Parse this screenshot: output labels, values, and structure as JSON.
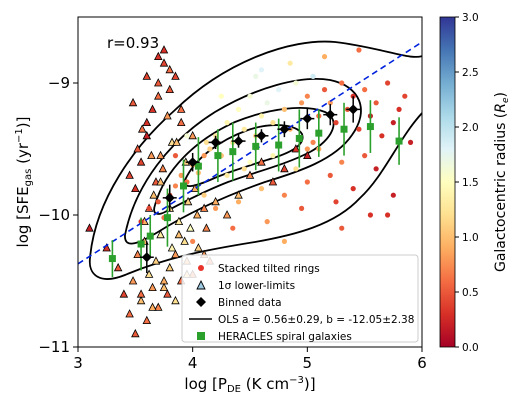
{
  "chart_data": {
    "type": "scatter",
    "annotation": "r=0.93",
    "xlabel_main": "log [P",
    "xlabel_sub": "DE",
    "xlabel_tail": " (K cm",
    "xlabel_sup": "−3",
    "xlabel_end": ")]",
    "ylabel_main": "log [SFE",
    "ylabel_sub": "gas",
    "ylabel_mid": " (yr",
    "ylabel_sup": "−1",
    "ylabel_end": ")]",
    "xlim": [
      3,
      6
    ],
    "ylim": [
      -11,
      -8.5
    ],
    "xticks": [
      3,
      4,
      5,
      6
    ],
    "yticks": [
      -11,
      -10,
      -9
    ],
    "ytick_labels": [
      "−11",
      "−10",
      "−9"
    ],
    "colorbar": {
      "label_main": "Galactocentric radius (",
      "label_sym": "R",
      "label_sub": "e",
      "label_end": ")",
      "range": [
        0,
        3
      ],
      "ticks": [
        0.0,
        0.5,
        1.0,
        1.5,
        2.0,
        2.5,
        3.0
      ],
      "tick_labels": [
        "0.0",
        "0.5",
        "1.0",
        "1.5",
        "2.0",
        "2.5",
        "3.0"
      ],
      "colormap": "RdYlBu"
    },
    "legend": {
      "placement": "lower-right",
      "entries": [
        {
          "label": "Stacked tilted rings",
          "marker": "dot",
          "color": "#e8322a"
        },
        {
          "label": "1σ lower-limits",
          "marker": "triangle",
          "color": "#9ec9e2"
        },
        {
          "label": "Binned data",
          "marker": "diamond",
          "color": "#000000"
        },
        {
          "label": "OLS a = 0.56±0.29, b = -12.05±2.38",
          "marker": "line",
          "color": "#000000"
        },
        {
          "label": "HERACLES spiral galaxies",
          "marker": "square",
          "color": "#2ca02c"
        }
      ]
    },
    "ols_fit": {
      "slope": 0.56,
      "intercept": -12.05,
      "x_range": [
        3,
        6
      ],
      "color": "#0022dd",
      "style": "dashed"
    },
    "binned_data": {
      "x": [
        3.6,
        3.8,
        4.0,
        4.2,
        4.4,
        4.6,
        4.8,
        5.0,
        5.2,
        5.4
      ],
      "y": [
        -10.32,
        -9.87,
        -9.6,
        -9.45,
        -9.44,
        -9.4,
        -9.35,
        -9.27,
        -9.24,
        -9.2
      ],
      "yerr": [
        0.12,
        0.1,
        0.07,
        0.05,
        0.05,
        0.05,
        0.06,
        0.08,
        0.08,
        0.1
      ]
    },
    "heracles": {
      "x": [
        3.3,
        3.55,
        3.63,
        3.78,
        3.92,
        4.05,
        4.22,
        4.35,
        4.55,
        4.75,
        4.93,
        5.1,
        5.32,
        5.55,
        5.8
      ],
      "y": [
        -10.33,
        -10.22,
        -10.16,
        -10.02,
        -9.78,
        -9.63,
        -9.55,
        -9.52,
        -9.48,
        -9.47,
        -9.42,
        -9.38,
        -9.35,
        -9.33,
        -9.44
      ],
      "yerr": [
        0.14,
        0.2,
        0.16,
        0.22,
        0.2,
        0.22,
        0.2,
        0.22,
        0.18,
        0.2,
        0.22,
        0.18,
        0.2,
        0.2,
        0.18
      ]
    },
    "stacked_rings": {
      "x": [
        3.55,
        3.62,
        3.7,
        3.75,
        3.8,
        3.85,
        3.9,
        3.95,
        4.0,
        4.05,
        4.1,
        4.12,
        4.15,
        4.2,
        4.25,
        4.3,
        4.35,
        4.4,
        4.45,
        4.5,
        4.55,
        4.6,
        4.65,
        4.7,
        4.75,
        4.8,
        4.85,
        4.9,
        4.95,
        5.0,
        5.05,
        5.1,
        5.15,
        5.2,
        5.25,
        5.3,
        5.35,
        5.4,
        5.45,
        5.5,
        5.55,
        5.6,
        5.65,
        5.7,
        5.75,
        5.8,
        5.85,
        5.9,
        4.1,
        4.3,
        4.5,
        4.7,
        4.9,
        5.1,
        5.3,
        5.5,
        4.2,
        4.4,
        4.6,
        4.8,
        5.0,
        5.2,
        5.4,
        5.6,
        4.35,
        4.65,
        4.95,
        5.25,
        5.55,
        5.75,
        3.95,
        4.25,
        4.55,
        4.85,
        5.15,
        5.45,
        4.0,
        4.8,
        5.3,
        5.7,
        4.6,
        5.0,
        3.85,
        4.45,
        5.05
      ],
      "y": [
        -10.05,
        -9.95,
        -9.9,
        -10.02,
        -9.85,
        -9.78,
        -9.7,
        -9.75,
        -9.62,
        -9.68,
        -9.55,
        -9.45,
        -9.5,
        -9.4,
        -9.55,
        -9.3,
        -9.45,
        -9.2,
        -9.35,
        -9.1,
        -9.4,
        -9.25,
        -9.15,
        -9.3,
        -9.05,
        -9.2,
        -9.35,
        -9.0,
        -9.15,
        -9.1,
        -8.95,
        -9.25,
        -9.05,
        -9.15,
        -9.3,
        -9.0,
        -9.2,
        -9.1,
        -9.35,
        -9.05,
        -9.25,
        -9.15,
        -9.4,
        -9.0,
        -9.3,
        -9.2,
        -9.1,
        -9.45,
        -9.85,
        -9.7,
        -9.6,
        -9.55,
        -9.65,
        -9.5,
        -9.6,
        -9.55,
        -9.95,
        -9.9,
        -9.8,
        -9.85,
        -9.75,
        -9.7,
        -9.8,
        -9.65,
        -10.1,
        -10.05,
        -9.95,
        -9.9,
        -10.0,
        -9.85,
        -9.4,
        -9.1,
        -8.95,
        -8.85,
        -8.8,
        -8.75,
        -10.2,
        -10.2,
        -10.1,
        -10.0,
        -8.9,
        -9.5,
        -9.55,
        -9.65,
        -9.45
      ],
      "radius": [
        0.3,
        0.4,
        0.5,
        0.6,
        0.4,
        0.7,
        0.8,
        0.6,
        0.9,
        1.0,
        0.8,
        1.2,
        1.1,
        1.3,
        1.0,
        1.4,
        1.2,
        1.5,
        1.3,
        1.6,
        1.1,
        1.4,
        1.7,
        1.2,
        1.8,
        1.0,
        0.9,
        1.6,
        0.8,
        0.7,
        1.9,
        0.6,
        0.5,
        0.8,
        0.4,
        0.6,
        0.5,
        0.3,
        0.4,
        0.6,
        0.2,
        0.5,
        0.3,
        0.4,
        0.2,
        0.3,
        0.4,
        0.2,
        1.1,
        1.3,
        1.5,
        1.4,
        1.2,
        0.9,
        0.7,
        0.5,
        0.8,
        0.9,
        1.0,
        0.7,
        0.6,
        0.5,
        0.3,
        0.2,
        0.6,
        0.8,
        0.5,
        0.4,
        0.3,
        0.2,
        1.6,
        1.5,
        1.7,
        1.3,
        0.9,
        0.6,
        0.7,
        0.9,
        0.5,
        0.3,
        1.8,
        0.8,
        0.5,
        1.2,
        0.7
      ]
    },
    "lower_limits": {
      "x": [
        3.1,
        3.25,
        3.35,
        3.4,
        3.45,
        3.48,
        3.5,
        3.52,
        3.55,
        3.58,
        3.6,
        3.62,
        3.65,
        3.68,
        3.7,
        3.72,
        3.75,
        3.78,
        3.8,
        3.82,
        3.85,
        3.88,
        3.9,
        3.93,
        3.95,
        3.98,
        4.0,
        4.05,
        4.1,
        4.15,
        3.5,
        3.55,
        3.6,
        3.65,
        3.7,
        3.75,
        3.8,
        3.62,
        3.68,
        3.72,
        3.58,
        3.66,
        3.74,
        3.82,
        3.9,
        3.45,
        3.52,
        3.6,
        3.7,
        3.78,
        3.86,
        3.94,
        4.02,
        4.1,
        3.48,
        3.56,
        3.64,
        3.72,
        3.8,
        3.88,
        3.96,
        4.04,
        4.12,
        3.6,
        3.7,
        3.8,
        3.9,
        4.0,
        3.55,
        3.65,
        3.75,
        3.85,
        3.95,
        4.2,
        4.3,
        4.4,
        4.5,
        4.6,
        4.7,
        4.8,
        4.9,
        5.0,
        3.75,
        3.85
      ],
      "y": [
        -10.1,
        -10.25,
        -10.4,
        -10.6,
        -10.75,
        -10.5,
        -10.9,
        -10.3,
        -10.65,
        -10.2,
        -10.8,
        -10.45,
        -10.55,
        -10.35,
        -10.7,
        -10.15,
        -10.5,
        -10.6,
        -10.4,
        -10.25,
        -10.3,
        -10.15,
        -10.5,
        -10.2,
        -10.35,
        -10.1,
        -10.45,
        -10.25,
        -10.3,
        -10.35,
        -9.8,
        -9.6,
        -9.4,
        -9.2,
        -9.0,
        -8.85,
        -8.9,
        -9.95,
        -9.75,
        -9.55,
        -10.05,
        -9.85,
        -9.65,
        -9.45,
        -9.3,
        -9.7,
        -9.5,
        -9.3,
        -9.1,
        -9.25,
        -9.45,
        -9.6,
        -9.8,
        -9.95,
        -9.15,
        -9.35,
        -9.55,
        -9.75,
        -9.95,
        -10.05,
        -9.9,
        -10.0,
        -10.1,
        -8.95,
        -8.8,
        -9.05,
        -9.2,
        -9.4,
        -10.6,
        -10.7,
        -10.55,
        -10.65,
        -10.45,
        -9.9,
        -10.0,
        -9.85,
        -9.7,
        -9.6,
        -9.75,
        -9.65,
        -9.5,
        -9.55,
        -8.75,
        -8.95
      ],
      "radius": [
        0.2,
        0.3,
        0.5,
        0.4,
        0.6,
        0.8,
        0.5,
        0.7,
        1.0,
        0.9,
        0.6,
        1.2,
        0.8,
        1.1,
        0.7,
        1.3,
        0.9,
        0.5,
        1.1,
        1.4,
        0.8,
        1.0,
        0.6,
        1.2,
        0.9,
        1.5,
        0.7,
        1.1,
        0.8,
        0.6,
        0.3,
        0.4,
        0.2,
        0.3,
        0.5,
        0.4,
        0.6,
        0.7,
        0.5,
        0.8,
        0.9,
        1.0,
        0.7,
        1.2,
        0.6,
        0.4,
        0.5,
        0.3,
        0.6,
        0.8,
        1.0,
        1.1,
        0.9,
        0.7,
        0.5,
        0.6,
        0.8,
        1.0,
        1.2,
        1.3,
        1.1,
        0.9,
        0.7,
        0.4,
        0.3,
        0.5,
        0.6,
        0.8,
        0.6,
        0.9,
        1.0,
        1.2,
        1.1,
        0.9,
        0.8,
        1.0,
        0.7,
        0.6,
        0.5,
        0.4,
        0.3,
        0.2,
        0.3,
        0.4
      ]
    }
  }
}
